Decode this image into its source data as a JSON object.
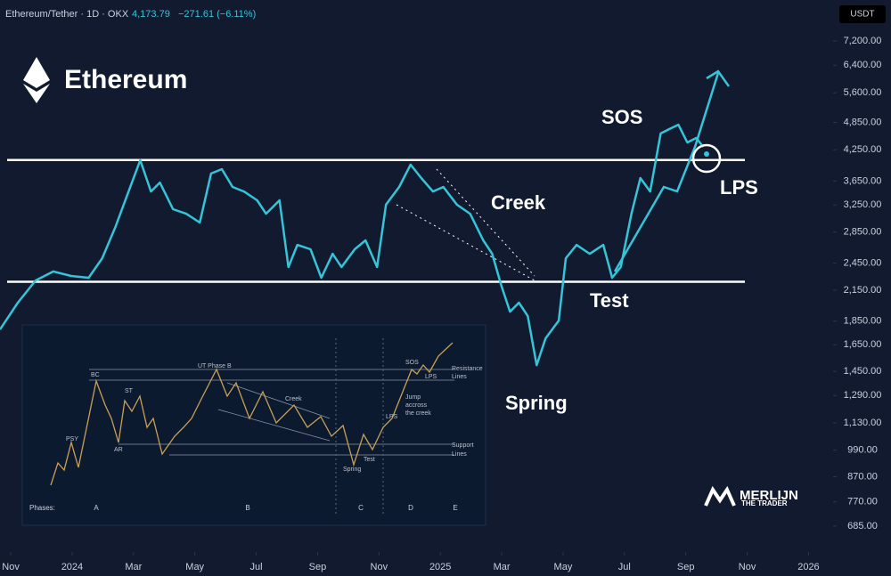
{
  "header": {
    "symbol": "Ethereum/Tether · 1D · OKX",
    "price": "4,173.79",
    "change": "−271.61 (−6.11%)",
    "currency": "USDT"
  },
  "chart_data": {
    "type": "line",
    "title": "Ethereum",
    "color": "#35c4d8",
    "log_scale": true,
    "x": [
      -0.35,
      0.23,
      0.81,
      1.39,
      1.97,
      2.54,
      2.98,
      3.41,
      3.84,
      4.22,
      4.57,
      4.86,
      5.29,
      5.72,
      6.16,
      6.53,
      6.88,
      7.23,
      7.6,
      8.03,
      8.32,
      8.76,
      9.05,
      9.34,
      9.77,
      10.12,
      10.49,
      10.78,
      11.21,
      11.56,
      11.94,
      12.23,
      12.66,
      13.03,
      13.38,
      13.76,
      14.1,
      14.54,
      14.97,
      15.4,
      15.69,
      15.98,
      16.27,
      16.56,
      16.85,
      17.14,
      17.43,
      17.86,
      18.09,
      18.44,
      18.87,
      19.31,
      19.6,
      19.88,
      20.23,
      20.52,
      20.84,
      21.18,
      21.47,
      21.76,
      22.05,
      22.34,
      22.57
    ],
    "values": [
      1777,
      2023,
      2253,
      2354,
      2303,
      2283,
      2510,
      2921,
      3470,
      4037,
      3470,
      3622,
      3184,
      3115,
      2984,
      3785,
      3866,
      3546,
      3470,
      3324,
      3115,
      3324,
      2405,
      2678,
      2622,
      2283,
      2565,
      2405,
      2622,
      2737,
      2405,
      3254,
      3546,
      3953,
      3703,
      3470,
      3546,
      3254,
      3115,
      2737,
      2565,
      2206,
      1937,
      2023,
      1897,
      1494,
      1702,
      1855,
      2510,
      2678,
      2565,
      2678,
      2283,
      2405,
      3115,
      3703,
      3470,
      4597,
      4697,
      4797,
      4401,
      4497,
      4307
    ],
    "resistance": 4042,
    "support": 2239,
    "xlim": [
      -0.35,
      26.8
    ],
    "xticks": [
      {
        "value": 0,
        "label": "Nov"
      },
      {
        "value": 2,
        "label": "2024"
      },
      {
        "value": 4,
        "label": "Mar"
      },
      {
        "value": 6,
        "label": "May"
      },
      {
        "value": 8,
        "label": "Jul"
      },
      {
        "value": 10,
        "label": "Sep"
      },
      {
        "value": 12,
        "label": "Nov"
      },
      {
        "value": 14,
        "label": "2025"
      },
      {
        "value": 16,
        "label": "Mar"
      },
      {
        "value": 18,
        "label": "May"
      },
      {
        "value": 20,
        "label": "Jul"
      },
      {
        "value": 22,
        "label": "Sep"
      },
      {
        "value": 24,
        "label": "Nov"
      },
      {
        "value": 26,
        "label": "2026"
      }
    ],
    "ylim": [
      604,
      8782
    ],
    "yticks": [
      {
        "value": 7200,
        "label": "7,200.00"
      },
      {
        "value": 6400,
        "label": "6,400.00"
      },
      {
        "value": 5600,
        "label": "5,600.00"
      },
      {
        "value": 4850,
        "label": "4,850.00"
      },
      {
        "value": 4250,
        "label": "4,250.00"
      },
      {
        "value": 3650,
        "label": "3,650.00"
      },
      {
        "value": 3250,
        "label": "3,250.00"
      },
      {
        "value": 2850,
        "label": "2,850.00"
      },
      {
        "value": 2450,
        "label": "2,450.00"
      },
      {
        "value": 2150,
        "label": "2,150.00"
      },
      {
        "value": 1850,
        "label": "1,850.00"
      },
      {
        "value": 1650,
        "label": "1,650.00"
      },
      {
        "value": 1450,
        "label": "1,450.00"
      },
      {
        "value": 1290,
        "label": "1,290.00"
      },
      {
        "value": 1130,
        "label": "1,130.00"
      },
      {
        "value": 990,
        "label": "990.00"
      },
      {
        "value": 870,
        "label": "870.00"
      },
      {
        "value": 770,
        "label": "770.00"
      },
      {
        "value": 685,
        "label": "685.00"
      }
    ],
    "annotations": [
      "SOS",
      "Creek",
      "LPS",
      "Test",
      "Spring"
    ]
  },
  "inset": {
    "labels": [
      "PSY",
      "BC",
      "ST",
      "AR",
      "UT Phase B",
      "Creek",
      "SOS",
      "LPS",
      "LPS",
      "Test",
      "Spring",
      "Jump",
      "accross",
      "the creek",
      "Resistance",
      "Lines",
      "Support",
      "Lines"
    ],
    "phases_title": "Phases:",
    "phases": [
      "A",
      "B",
      "C",
      "D",
      "E"
    ]
  },
  "brand": {
    "name": "MERLIJN",
    "tagline": "THE TRADER"
  }
}
